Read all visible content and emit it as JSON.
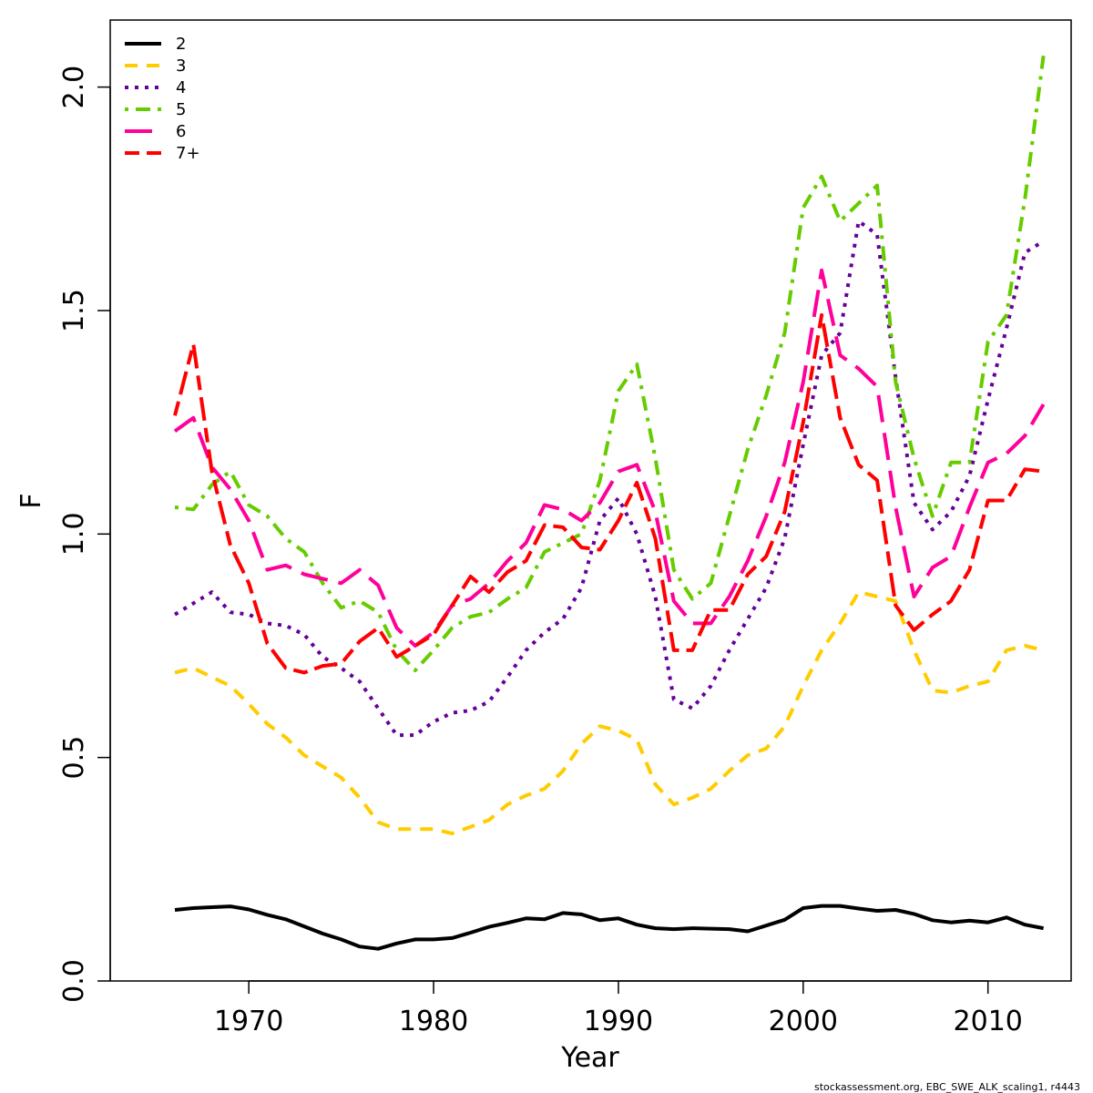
{
  "chart_data": {
    "type": "line",
    "title": "",
    "xlabel": "Year",
    "ylabel": "F",
    "xlim": [
      1962.5,
      2014.5
    ],
    "ylim": [
      0,
      2.15
    ],
    "x_ticks": [
      1970,
      1980,
      1990,
      2000,
      2010
    ],
    "y_ticks": [
      0.0,
      0.5,
      1.0,
      1.5,
      2.0
    ],
    "y_tick_labels": [
      "0.0",
      "0.5",
      "1.0",
      "1.5",
      "2.0"
    ],
    "grid": false,
    "legend_position": "top-left",
    "credit": "stockassessment.org, EBC_SWE_ALK_scaling1, r4443",
    "x": [
      1966,
      1967,
      1968,
      1969,
      1970,
      1971,
      1972,
      1973,
      1974,
      1975,
      1976,
      1977,
      1978,
      1979,
      1980,
      1981,
      1982,
      1983,
      1984,
      1985,
      1986,
      1987,
      1988,
      1989,
      1990,
      1991,
      1992,
      1993,
      1994,
      1995,
      1996,
      1997,
      1998,
      1999,
      2000,
      2001,
      2002,
      2003,
      2004,
      2005,
      2006,
      2007,
      2008,
      2009,
      2010,
      2011,
      2012,
      2013
    ],
    "series": [
      {
        "name": "2",
        "color": "#000000",
        "dash": "solid",
        "values": [
          0.159,
          0.163,
          0.165,
          0.167,
          0.16,
          0.148,
          0.138,
          0.122,
          0.106,
          0.093,
          0.077,
          0.072,
          0.084,
          0.093,
          0.093,
          0.096,
          0.108,
          0.121,
          0.13,
          0.14,
          0.138,
          0.152,
          0.149,
          0.136,
          0.14,
          0.126,
          0.118,
          0.116,
          0.118,
          0.117,
          0.116,
          0.111,
          0.124,
          0.137,
          0.163,
          0.168,
          0.168,
          0.162,
          0.157,
          0.159,
          0.15,
          0.136,
          0.131,
          0.135,
          0.131,
          0.142,
          0.126,
          0.118
        ]
      },
      {
        "name": "3",
        "color": "#FFCC00",
        "dash": "dashed",
        "values": [
          0.69,
          0.7,
          0.68,
          0.66,
          0.62,
          0.575,
          0.545,
          0.505,
          0.48,
          0.455,
          0.41,
          0.355,
          0.34,
          0.34,
          0.34,
          0.33,
          0.345,
          0.36,
          0.395,
          0.415,
          0.43,
          0.47,
          0.53,
          0.57,
          0.56,
          0.54,
          0.44,
          0.395,
          0.41,
          0.43,
          0.47,
          0.505,
          0.52,
          0.57,
          0.66,
          0.74,
          0.8,
          0.87,
          0.86,
          0.85,
          0.74,
          0.65,
          0.645,
          0.66,
          0.67,
          0.74,
          0.75,
          0.74
        ]
      },
      {
        "name": "4",
        "color": "#660099",
        "dash": "dotted",
        "values": [
          0.82,
          0.845,
          0.87,
          0.825,
          0.82,
          0.8,
          0.795,
          0.775,
          0.725,
          0.7,
          0.67,
          0.61,
          0.55,
          0.55,
          0.58,
          0.6,
          0.605,
          0.625,
          0.68,
          0.74,
          0.78,
          0.81,
          0.88,
          1.03,
          1.08,
          1.0,
          0.86,
          0.63,
          0.61,
          0.66,
          0.74,
          0.81,
          0.88,
          0.99,
          1.2,
          1.4,
          1.45,
          1.7,
          1.67,
          1.35,
          1.07,
          1.01,
          1.05,
          1.13,
          1.3,
          1.46,
          1.63,
          1.655
        ]
      },
      {
        "name": "5",
        "color": "#66CC00",
        "dash": "dotdash",
        "values": [
          1.06,
          1.055,
          1.11,
          1.14,
          1.065,
          1.04,
          0.99,
          0.96,
          0.89,
          0.835,
          0.85,
          0.825,
          0.74,
          0.695,
          0.74,
          0.79,
          0.815,
          0.825,
          0.855,
          0.88,
          0.96,
          0.98,
          1.0,
          1.12,
          1.32,
          1.38,
          1.17,
          0.92,
          0.855,
          0.89,
          1.04,
          1.19,
          1.31,
          1.45,
          1.73,
          1.8,
          1.7,
          1.74,
          1.78,
          1.34,
          1.17,
          1.04,
          1.16,
          1.16,
          1.43,
          1.49,
          1.75,
          2.07
        ]
      },
      {
        "name": "6",
        "color": "#FF0099",
        "dash": "longdash",
        "values": [
          1.23,
          1.26,
          1.15,
          1.1,
          1.03,
          0.92,
          0.93,
          0.91,
          0.9,
          0.89,
          0.92,
          0.885,
          0.79,
          0.75,
          0.78,
          0.84,
          0.855,
          0.89,
          0.94,
          0.98,
          1.065,
          1.055,
          1.03,
          1.07,
          1.14,
          1.155,
          1.05,
          0.85,
          0.8,
          0.8,
          0.86,
          0.94,
          1.04,
          1.16,
          1.34,
          1.59,
          1.4,
          1.37,
          1.33,
          1.06,
          0.86,
          0.925,
          0.95,
          1.06,
          1.16,
          1.18,
          1.22,
          1.29
        ]
      },
      {
        "name": "7+",
        "color": "#FF0000",
        "dash": "twodash",
        "values": [
          1.265,
          1.425,
          1.14,
          0.975,
          0.89,
          0.755,
          0.7,
          0.69,
          0.705,
          0.71,
          0.76,
          0.79,
          0.725,
          0.75,
          0.775,
          0.84,
          0.905,
          0.87,
          0.915,
          0.94,
          1.02,
          1.015,
          0.97,
          0.965,
          1.03,
          1.115,
          0.99,
          0.74,
          0.74,
          0.83,
          0.83,
          0.91,
          0.95,
          1.05,
          1.25,
          1.49,
          1.26,
          1.155,
          1.12,
          0.84,
          0.785,
          0.82,
          0.85,
          0.92,
          1.075,
          1.075,
          1.145,
          1.14
        ]
      }
    ]
  }
}
